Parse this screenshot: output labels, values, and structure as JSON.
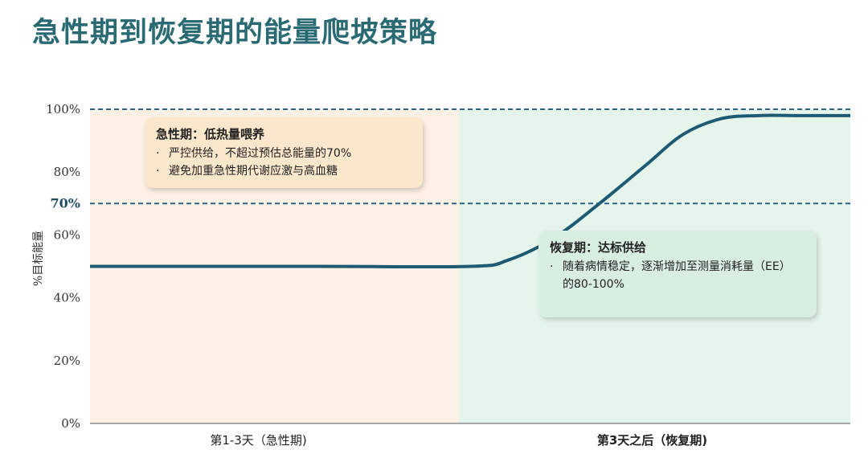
{
  "page": {
    "title": "急性期到恢复期的能量爬坡策略"
  },
  "chart_data": {
    "type": "line",
    "ylabel": "%目标能量",
    "ylim": [
      0,
      100
    ],
    "yticks": [
      "0%",
      "20%",
      "40%",
      "60%",
      "70%",
      "80%",
      "100%"
    ],
    "ytick_values": [
      0,
      20,
      40,
      60,
      70,
      80,
      100
    ],
    "highlight_tick": "70%",
    "reference_lines": [
      100,
      70
    ],
    "xcategories": [
      "第1-3天（急性期)",
      "第3天之后（恢复期)"
    ],
    "phase_colors": {
      "acute": "#fdf1e5",
      "recovery": "#e6f5ec"
    },
    "series": [
      {
        "color": "#1f5a73",
        "x": [
          0,
          0.3,
          0.5,
          0.55,
          0.61,
          0.67,
          0.73,
          0.78,
          0.83,
          0.88,
          0.93,
          1.0
        ],
        "y": [
          50,
          50,
          50,
          52,
          59,
          70,
          82,
          92,
          97,
          98,
          98,
          98
        ]
      }
    ]
  },
  "callouts": {
    "acute": {
      "title": "急性期：低热量喂养",
      "items": [
        "严控供给，不超过预估总能量的70%",
        "避免加重急性期代谢应激与高血糖"
      ]
    },
    "recovery": {
      "title": "恢复期：达标供给",
      "items": [
        "随着病情稳定，逐渐增加至测量消耗量（EE） 的80-100%"
      ]
    }
  }
}
